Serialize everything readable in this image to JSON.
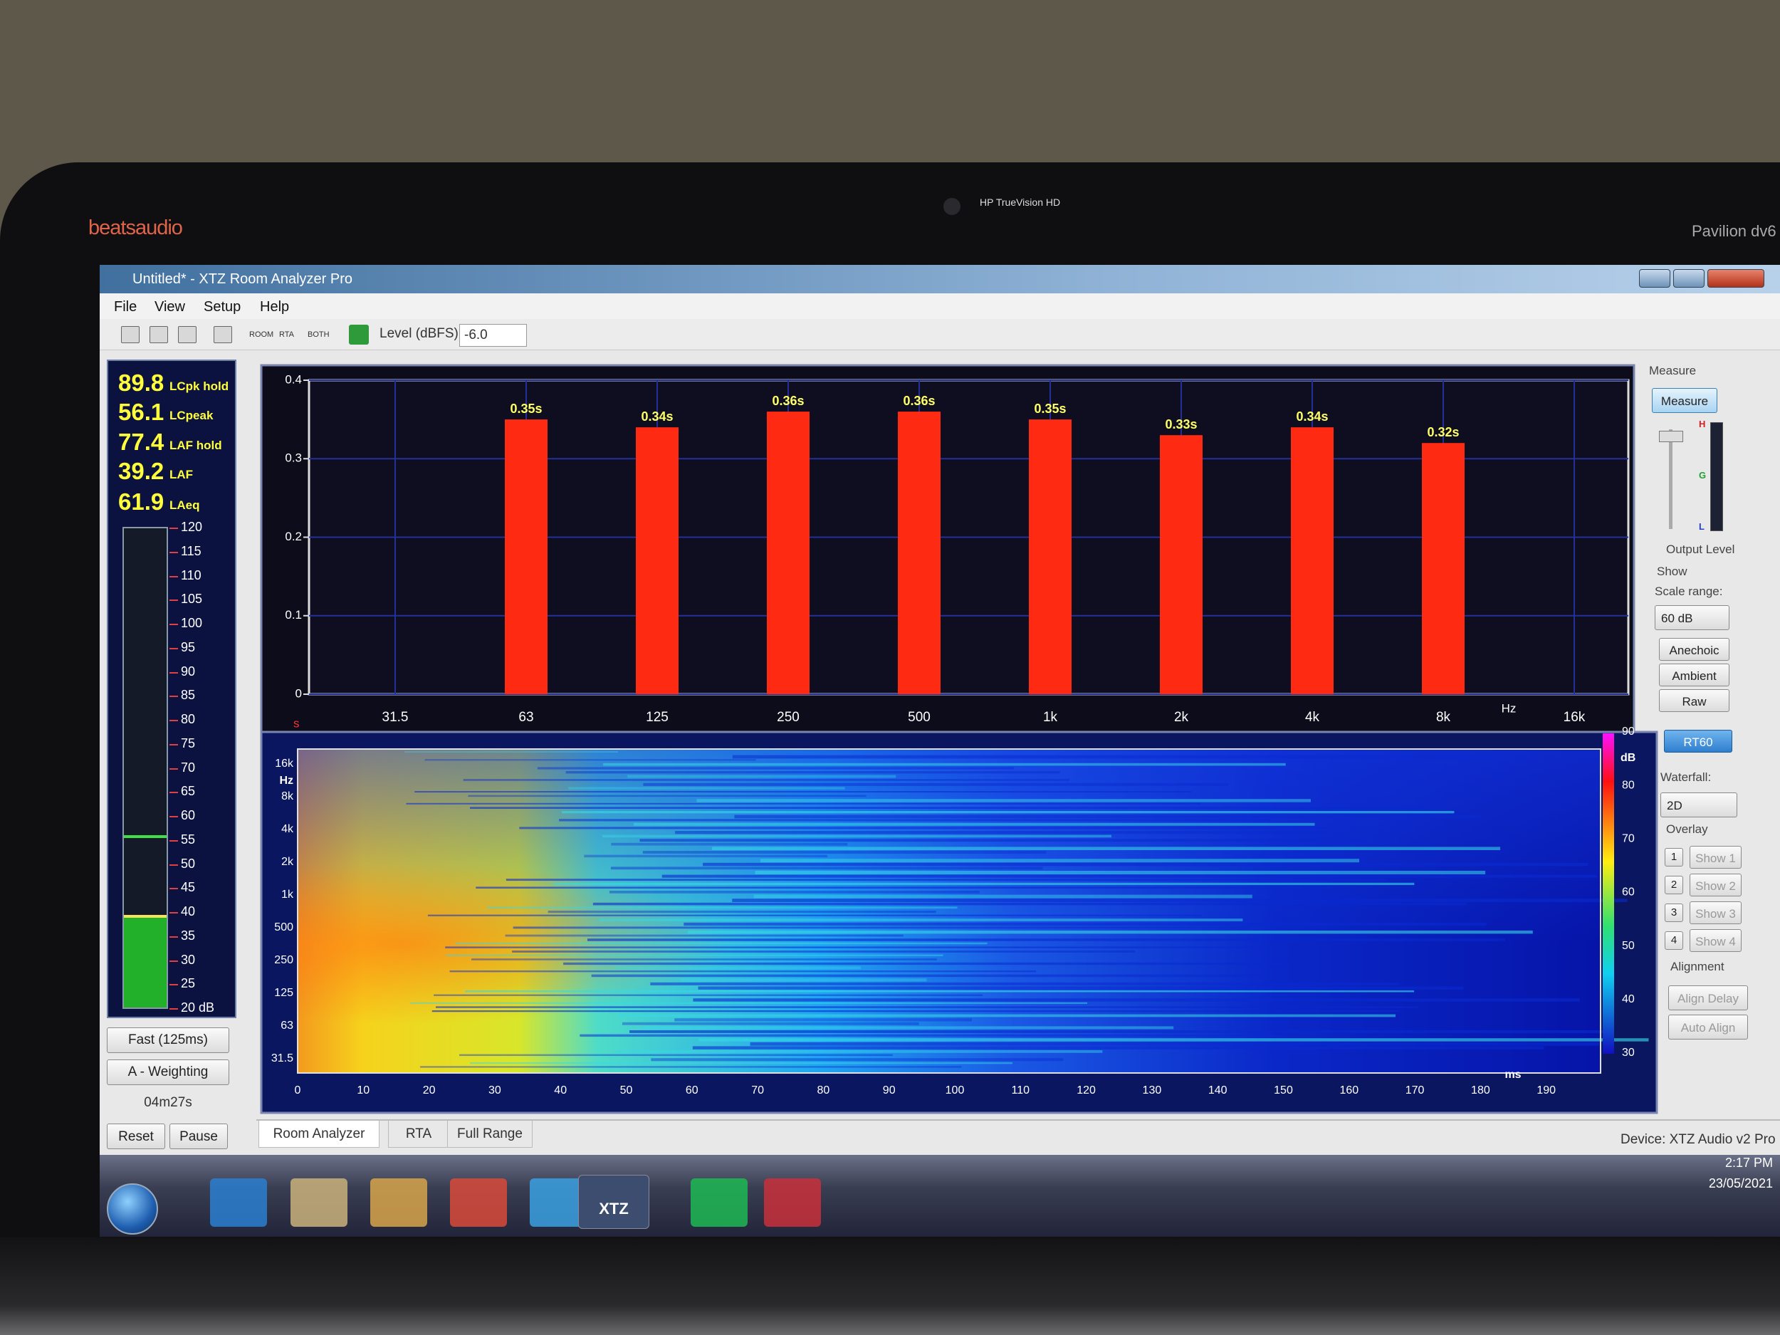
{
  "laptop": {
    "brand": "beatsaudio",
    "camera": "HP TrueVision HD",
    "model": "Pavilion dv6"
  },
  "window": {
    "title": "Untitled* - XTZ Room Analyzer Pro",
    "menu": [
      "File",
      "View",
      "Setup",
      "Help"
    ],
    "toolbar": {
      "modes": [
        "ROOM",
        "RTA",
        "BOTH"
      ],
      "level_label": "Level (dBFS)",
      "level_value": "-6.0"
    }
  },
  "meter": {
    "readings": [
      {
        "value": "89.8",
        "label": "LCpk hold"
      },
      {
        "value": "56.1",
        "label": "LCpeak"
      },
      {
        "value": "77.4",
        "label": "LAF hold"
      },
      {
        "value": "39.2",
        "label": "LAF"
      },
      {
        "value": "61.9",
        "label": "LAeq"
      }
    ],
    "scale": [
      "120",
      "115",
      "110",
      "105",
      "100",
      "95",
      "90",
      "85",
      "80",
      "75",
      "70",
      "65",
      "60",
      "55",
      "50",
      "45",
      "40",
      "35",
      "30",
      "25",
      "20 dB"
    ],
    "response": "Fast (125ms)",
    "weighting": "A - Weighting",
    "elapsed": "04m27s",
    "buttons": [
      "Reset",
      "Pause"
    ]
  },
  "chart_data": {
    "type": "bar",
    "categories": [
      "31.5",
      "63",
      "125",
      "250",
      "500",
      "1k",
      "2k",
      "4k",
      "8k",
      "16k"
    ],
    "values": [
      null,
      0.35,
      0.34,
      0.36,
      0.36,
      0.35,
      0.33,
      0.34,
      0.32,
      null
    ],
    "value_labels": [
      null,
      "0.35s",
      "0.34s",
      "0.36s",
      "0.36s",
      "0.35s",
      "0.33s",
      "0.34s",
      "0.32s",
      null
    ],
    "ylim": [
      0,
      0.4
    ],
    "yticks": [
      0,
      0.1,
      0.2,
      0.3,
      0.4
    ],
    "xlabel": "Hz",
    "ylabel": "s",
    "color": "#ff2a12",
    "grid": true
  },
  "waterfall": {
    "y_labels": [
      "16k",
      "8k",
      "4k",
      "2k",
      "1k",
      "500",
      "250",
      "125",
      "63",
      "31.5"
    ],
    "y_unit": "Hz",
    "x_labels": [
      0,
      10,
      20,
      30,
      40,
      50,
      60,
      70,
      80,
      90,
      100,
      110,
      120,
      130,
      140,
      150,
      160,
      170,
      180,
      190
    ],
    "x_unit": "ms",
    "color_scale": [
      90,
      80,
      70,
      60,
      50,
      40,
      30
    ],
    "color_unit": "dB"
  },
  "side_panel": {
    "measure_group": "Measure",
    "measure_button": "Measure",
    "meter_marks": [
      "H",
      "G",
      "L"
    ],
    "output_level": "Output Level",
    "show": "Show",
    "scale_range": "Scale range:",
    "scale_value": "60 dB",
    "modes": [
      "Anechoic",
      "Ambient",
      "Raw"
    ],
    "rt60": "RT60",
    "waterfall_label": "Waterfall:",
    "waterfall_value": "2D",
    "overlay": "Overlay",
    "overlays": [
      {
        "num": "1",
        "label": "Show 1"
      },
      {
        "num": "2",
        "label": "Show 2"
      },
      {
        "num": "3",
        "label": "Show 3"
      },
      {
        "num": "4",
        "label": "Show 4"
      }
    ],
    "alignment": "Alignment",
    "align_buttons": [
      "Align Delay",
      "Auto Align"
    ]
  },
  "tabs": [
    "Room Analyzer",
    "RTA",
    "Full Range"
  ],
  "status": "Device: XTZ Audio v2 Pro",
  "taskbar": {
    "app": "XTZ",
    "time": "2:17 PM",
    "date": "23/05/2021"
  }
}
